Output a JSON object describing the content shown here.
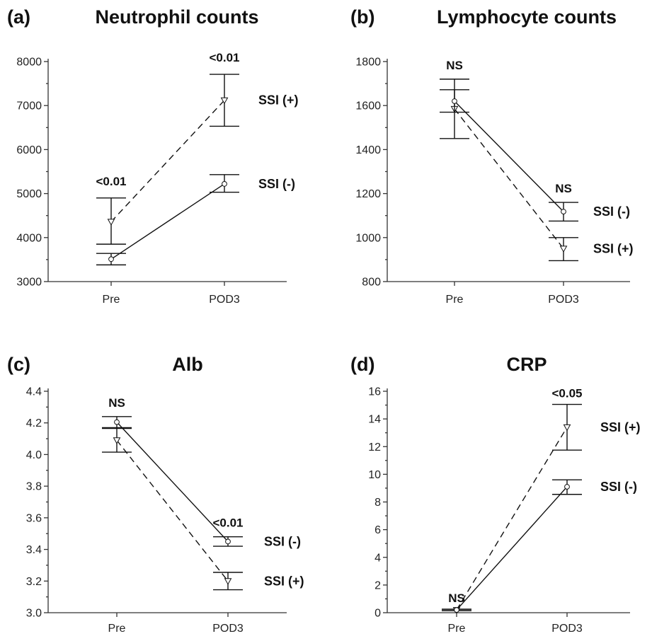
{
  "chart_data": [
    {
      "type": "line",
      "panel": "(a)",
      "title": "Neutrophil counts",
      "categories": [
        "Pre",
        "POD3"
      ],
      "ylim": [
        3000,
        8000
      ],
      "yticks": [
        "3000",
        "4000",
        "5000",
        "6000",
        "7000",
        "8000"
      ],
      "series": [
        {
          "name": "SSI (+)",
          "style": "dashed",
          "marker": "triangle",
          "values": [
            4360,
            7120
          ],
          "lower": [
            3850,
            6530
          ],
          "upper": [
            4900,
            7710
          ]
        },
        {
          "name": "SSI (-)",
          "style": "solid",
          "marker": "circle",
          "values": [
            3510,
            5220
          ],
          "lower": [
            3380,
            5030
          ],
          "upper": [
            3640,
            5430
          ]
        }
      ],
      "significance": [
        "<0.01",
        "<0.01"
      ]
    },
    {
      "type": "line",
      "panel": "(b)",
      "title": "Lymphocyte counts",
      "categories": [
        "Pre",
        "POD3"
      ],
      "ylim": [
        800,
        1800
      ],
      "yticks": [
        "800",
        "1000",
        "1200",
        "1400",
        "1600",
        "1800"
      ],
      "series": [
        {
          "name": "SSI (+)",
          "style": "dashed",
          "marker": "triangle",
          "values": [
            1585,
            950
          ],
          "lower": [
            1450,
            895
          ],
          "upper": [
            1720,
            1000
          ]
        },
        {
          "name": "SSI (-)",
          "style": "solid",
          "marker": "circle",
          "values": [
            1620,
            1118
          ],
          "lower": [
            1570,
            1075
          ],
          "upper": [
            1672,
            1160
          ]
        }
      ],
      "significance": [
        "NS",
        "NS"
      ]
    },
    {
      "type": "line",
      "panel": "(c)",
      "title": "Alb",
      "categories": [
        "Pre",
        "POD3"
      ],
      "ylim": [
        3.0,
        4.4
      ],
      "yticks": [
        "3.0",
        "3.2",
        "3.4",
        "3.6",
        "3.8",
        "4.0",
        "4.2",
        "4.4"
      ],
      "series": [
        {
          "name": "SSI (+)",
          "style": "dashed",
          "marker": "triangle",
          "values": [
            4.09,
            3.2
          ],
          "lower": [
            4.015,
            3.145
          ],
          "upper": [
            4.165,
            3.255
          ]
        },
        {
          "name": "SSI (-)",
          "style": "solid",
          "marker": "circle",
          "values": [
            4.205,
            3.45
          ],
          "lower": [
            4.17,
            3.42
          ],
          "upper": [
            4.24,
            3.48
          ]
        }
      ],
      "significance": [
        "NS",
        "<0.01"
      ]
    },
    {
      "type": "line",
      "panel": "(d)",
      "title": "CRP",
      "categories": [
        "Pre",
        "POD3"
      ],
      "ylim": [
        0,
        16
      ],
      "yticks": [
        "0",
        "2",
        "4",
        "6",
        "8",
        "10",
        "12",
        "14",
        "16"
      ],
      "series": [
        {
          "name": "SSI (+)",
          "style": "dashed",
          "marker": "triangle",
          "values": [
            0.2,
            13.4
          ],
          "lower": [
            0.15,
            11.75
          ],
          "upper": [
            0.25,
            15.05
          ]
        },
        {
          "name": "SSI (-)",
          "style": "solid",
          "marker": "circle",
          "values": [
            0.2,
            9.1
          ],
          "lower": [
            0.15,
            8.55
          ],
          "upper": [
            0.25,
            9.6
          ]
        }
      ],
      "significance": [
        "NS",
        "<0.05"
      ]
    }
  ]
}
